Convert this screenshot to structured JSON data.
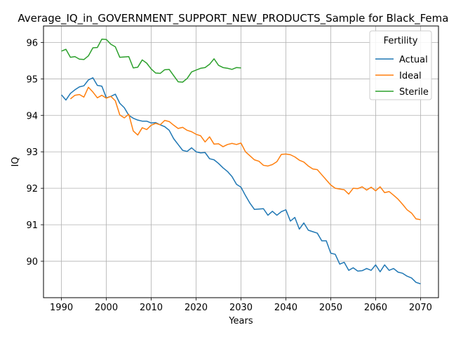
{
  "chart_data": {
    "type": "line",
    "title": "Average_IQ_in_GOVERNMENT_SUPPORT_NEW_PRODUCTS_Sample for Black_Females",
    "xlabel": "Years",
    "ylabel": "IQ",
    "xlim": [
      1986,
      2074
    ],
    "ylim": [
      89.0,
      96.45
    ],
    "xticks": [
      1990,
      2000,
      2010,
      2020,
      2030,
      2040,
      2050,
      2060,
      2070
    ],
    "yticks": [
      90,
      91,
      92,
      93,
      94,
      95,
      96
    ],
    "grid": true,
    "legend": {
      "title": "Fertility",
      "placement": "top-right"
    },
    "series": [
      {
        "name": "Actual",
        "color": "#1f77b4",
        "x": [
          1990,
          1991,
          1992,
          1993,
          1994,
          1995,
          1996,
          1997,
          1998,
          1999,
          2000,
          2001,
          2002,
          2003,
          2004,
          2005,
          2006,
          2007,
          2008,
          2009,
          2010,
          2011,
          2012,
          2013,
          2014,
          2015,
          2016,
          2017,
          2018,
          2019,
          2020,
          2021,
          2022,
          2023,
          2024,
          2025,
          2026,
          2027,
          2028,
          2029,
          2030,
          2031,
          2032,
          2033,
          2034,
          2035,
          2036,
          2037,
          2038,
          2039,
          2040,
          2041,
          2042,
          2043,
          2044,
          2045,
          2046,
          2047,
          2048,
          2049,
          2050,
          2051,
          2052,
          2053,
          2054,
          2055,
          2056,
          2057,
          2058,
          2059,
          2060,
          2061,
          2062,
          2063,
          2064,
          2065,
          2066,
          2067,
          2068,
          2069,
          2070
        ],
        "values": [
          94.56,
          94.42,
          94.6,
          94.7,
          94.78,
          94.81,
          94.97,
          95.03,
          94.82,
          94.8,
          94.48,
          94.52,
          94.58,
          94.33,
          94.21,
          94.0,
          93.92,
          93.87,
          93.84,
          93.84,
          93.79,
          93.8,
          93.74,
          93.69,
          93.59,
          93.36,
          93.2,
          93.04,
          93.01,
          93.11,
          93.0,
          92.97,
          92.98,
          92.81,
          92.78,
          92.68,
          92.56,
          92.46,
          92.32,
          92.11,
          92.03,
          91.8,
          91.59,
          91.42,
          91.43,
          91.44,
          91.26,
          91.37,
          91.26,
          91.36,
          91.41,
          91.1,
          91.2,
          90.88,
          91.05,
          90.85,
          90.81,
          90.77,
          90.56,
          90.56,
          90.22,
          90.19,
          89.92,
          89.97,
          89.75,
          89.82,
          89.73,
          89.74,
          89.8,
          89.75,
          89.9,
          89.71,
          89.9,
          89.75,
          89.8,
          89.7,
          89.67,
          89.59,
          89.54,
          89.42,
          89.38
        ]
      },
      {
        "name": "Ideal",
        "color": "#ff7f0e",
        "x": [
          1992,
          1993,
          1994,
          1995,
          1996,
          1997,
          1998,
          1999,
          2000,
          2001,
          2002,
          2003,
          2004,
          2005,
          2006,
          2007,
          2008,
          2009,
          2010,
          2011,
          2012,
          2013,
          2014,
          2015,
          2016,
          2017,
          2018,
          2019,
          2020,
          2021,
          2022,
          2023,
          2024,
          2025,
          2026,
          2027,
          2028,
          2029,
          2030,
          2031,
          2032,
          2033,
          2034,
          2035,
          2036,
          2037,
          2038,
          2039,
          2040,
          2041,
          2042,
          2043,
          2044,
          2045,
          2046,
          2047,
          2048,
          2049,
          2050,
          2051,
          2052,
          2053,
          2054,
          2055,
          2056,
          2057,
          2058,
          2059,
          2060,
          2061,
          2062,
          2063,
          2064,
          2065,
          2066,
          2067,
          2068,
          2069,
          2070
        ],
        "values": [
          94.45,
          94.55,
          94.57,
          94.5,
          94.77,
          94.64,
          94.48,
          94.55,
          94.47,
          94.52,
          94.4,
          94.01,
          93.93,
          94.03,
          93.57,
          93.46,
          93.66,
          93.61,
          93.73,
          93.78,
          93.74,
          93.86,
          93.83,
          93.73,
          93.64,
          93.67,
          93.59,
          93.55,
          93.48,
          93.44,
          93.27,
          93.41,
          93.21,
          93.22,
          93.14,
          93.2,
          93.23,
          93.2,
          93.24,
          93.0,
          92.89,
          92.78,
          92.74,
          92.63,
          92.61,
          92.65,
          92.73,
          92.93,
          92.94,
          92.92,
          92.86,
          92.77,
          92.72,
          92.61,
          92.53,
          92.51,
          92.37,
          92.23,
          92.09,
          92.0,
          91.98,
          91.96,
          91.84,
          92.0,
          91.99,
          92.04,
          91.95,
          92.03,
          91.93,
          92.04,
          91.88,
          91.91,
          91.81,
          91.7,
          91.56,
          91.41,
          91.32,
          91.16,
          91.14
        ]
      },
      {
        "name": "Sterile",
        "color": "#2ca02c",
        "x": [
          1990,
          1991,
          1992,
          1993,
          1994,
          1995,
          1996,
          1997,
          1998,
          1999,
          2000,
          2001,
          2002,
          2003,
          2004,
          2005,
          2006,
          2007,
          2008,
          2009,
          2010,
          2011,
          2012,
          2013,
          2014,
          2015,
          2016,
          2017,
          2018,
          2019,
          2020,
          2021,
          2022,
          2023,
          2024,
          2025,
          2026,
          2027,
          2028,
          2029,
          2030
        ],
        "values": [
          95.76,
          95.81,
          95.59,
          95.61,
          95.54,
          95.53,
          95.63,
          95.85,
          95.86,
          96.09,
          96.08,
          95.95,
          95.88,
          95.59,
          95.6,
          95.61,
          95.3,
          95.32,
          95.52,
          95.43,
          95.27,
          95.16,
          95.15,
          95.25,
          95.26,
          95.09,
          94.92,
          94.91,
          95.01,
          95.19,
          95.24,
          95.29,
          95.31,
          95.4,
          95.55,
          95.37,
          95.31,
          95.29,
          95.26,
          95.31,
          95.3
        ]
      }
    ]
  }
}
